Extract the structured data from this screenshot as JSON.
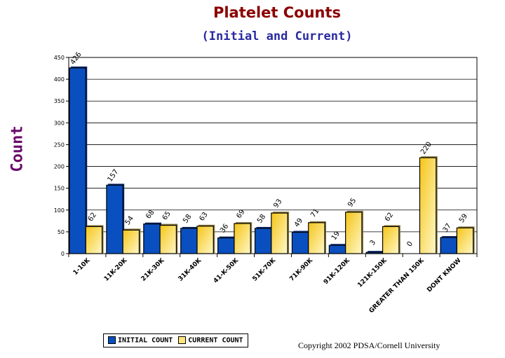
{
  "chart_data": {
    "type": "bar",
    "title": "Platelet Counts",
    "subtitle": "(Initial and Current)",
    "xlabel": "",
    "ylabel": "Count",
    "ylim": [
      0,
      450
    ],
    "yticks": [
      0,
      50,
      100,
      150,
      200,
      250,
      300,
      350,
      400,
      450
    ],
    "grid": true,
    "legend_position": "bottom",
    "categories": [
      "1-10K",
      "11K-20K",
      "21K-30K",
      "31K-40K",
      "41-K-50K",
      "51K-70K",
      "71K-90K",
      "91K-120K",
      "121K-150K",
      "GREATER THAN 150K",
      "DONT KNOW"
    ],
    "series": [
      {
        "name": "INITIAL COUNT",
        "color": "#0a4fbf",
        "values": [
          426,
          157,
          68,
          58,
          36,
          58,
          49,
          19,
          3,
          0,
          37
        ]
      },
      {
        "name": "CURRENT COUNT",
        "color": "#ffe680",
        "values": [
          62,
          54,
          65,
          63,
          69,
          93,
          71,
          95,
          62,
          220,
          59
        ]
      }
    ]
  },
  "copyright": "Copyright 2002  PDSA/Cornell University"
}
